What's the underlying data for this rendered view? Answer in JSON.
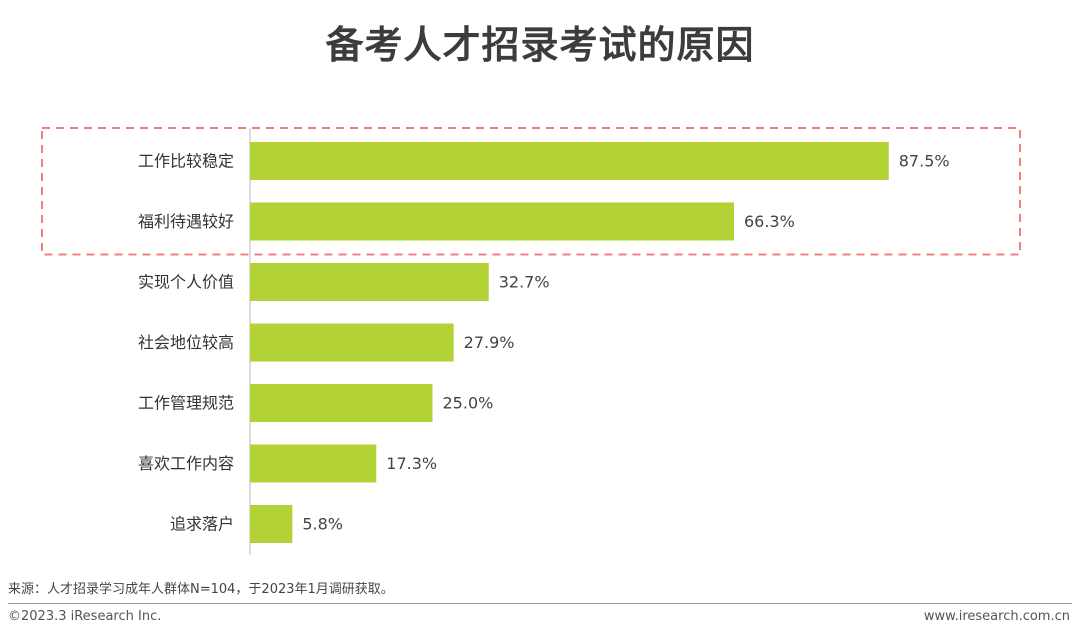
{
  "title": "备考人才招录考试的原因",
  "chart_data": {
    "type": "bar",
    "orientation": "horizontal",
    "title": "备考人才招录考试的原因",
    "categories": [
      "工作比较稳定",
      "福利待遇较好",
      "实现个人价值",
      "社会地位较高",
      "工作管理规范",
      "喜欢工作内容",
      "追求落户"
    ],
    "values": [
      87.5,
      66.3,
      32.7,
      27.9,
      25.0,
      17.3,
      5.8
    ],
    "value_labels": [
      "87.5%",
      "66.3%",
      "32.7%",
      "27.9%",
      "25.0%",
      "17.3%",
      "5.8%"
    ],
    "unit": "%",
    "xlim": [
      0,
      100
    ],
    "grid": false,
    "bar_color": "#b2d235",
    "highlight": {
      "categories": [
        "工作比较稳定",
        "福利待遇较好"
      ],
      "style": "dashed",
      "color": "#f08080"
    }
  },
  "source": "来源：人才招录学习成年人群体N=104，于2023年1月调研获取。",
  "copyright": "©2023.3 iResearch Inc.",
  "website": "www.iresearch.com.cn"
}
